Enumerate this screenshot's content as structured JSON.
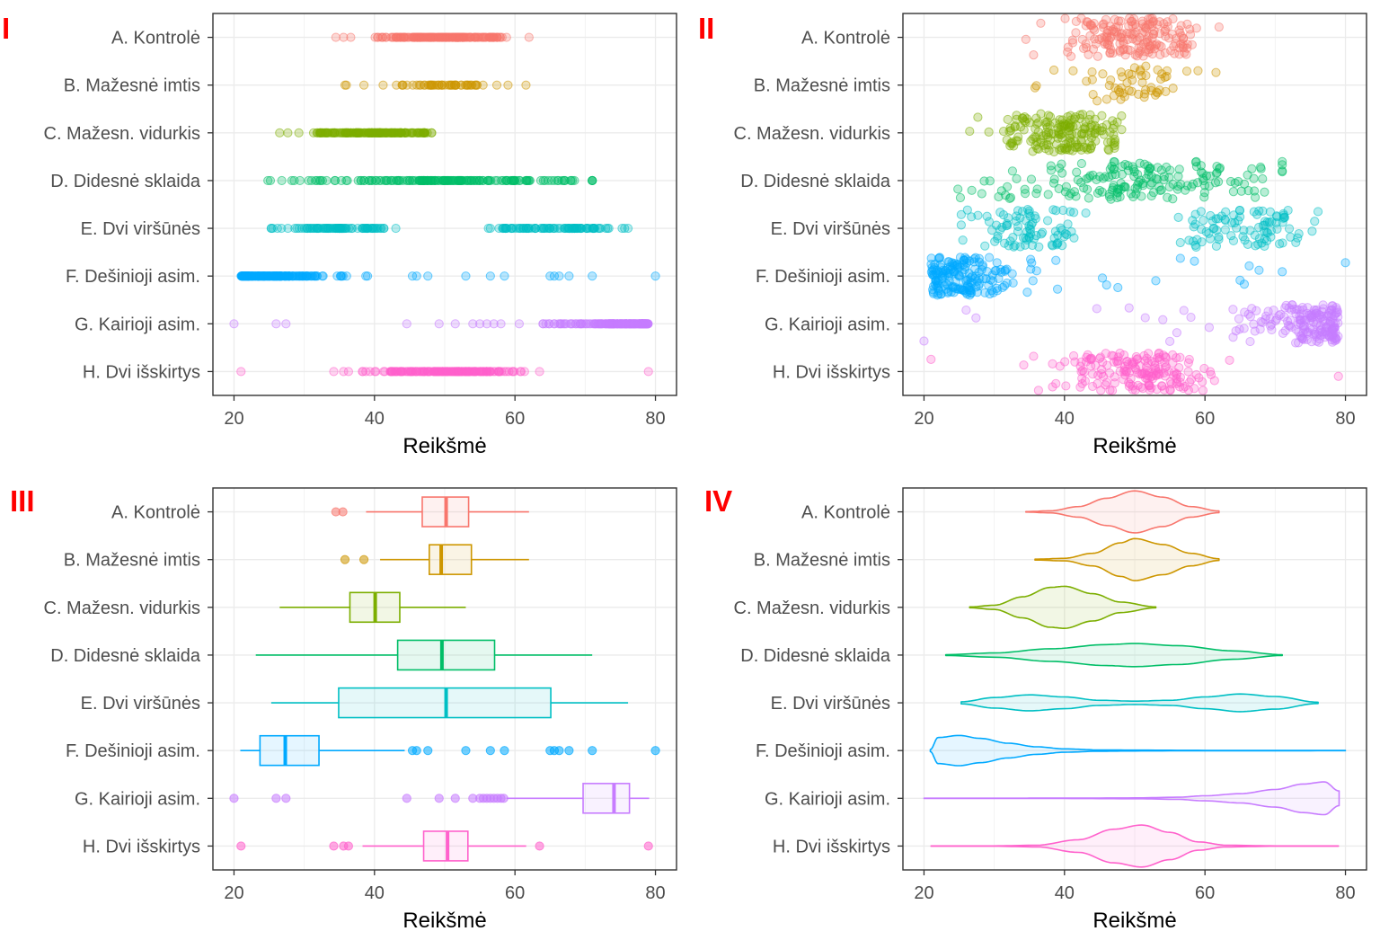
{
  "chart_data": {
    "type": "multi-panel distribution plot",
    "x_axis": {
      "label": "Reikšmė",
      "range": [
        17,
        83
      ],
      "ticks": [
        20,
        40,
        60,
        80
      ]
    },
    "grid": true,
    "categories": [
      "A. Kontrolė",
      "B. Mažesnė imtis",
      "C. Mažesn. vidurkis",
      "D. Didesnė sklaida",
      "E. Dvi viršūnės",
      "F. Dešinioji asim.",
      "G. Kairioji asim.",
      "H. Dvi išskirtys"
    ],
    "colors": [
      "#F8766D",
      "#CD9600",
      "#7CAE00",
      "#00BE67",
      "#00BFC4",
      "#00A9FF",
      "#C77CFF",
      "#FF61CC"
    ],
    "panels": [
      {
        "label": "I",
        "type": "strip"
      },
      {
        "label": "II",
        "type": "jitter"
      },
      {
        "label": "III",
        "type": "boxplot"
      },
      {
        "label": "IV",
        "type": "violin"
      }
    ],
    "boxplot_stats": [
      {
        "category": "A. Kontrolė",
        "whisker_low": 38.8,
        "q1": 46.8,
        "median": 50.2,
        "q3": 53.4,
        "whisker_high": 62,
        "outliers": [
          34.5,
          35.5
        ]
      },
      {
        "category": "B. Mažesnė imtis",
        "whisker_low": 40.8,
        "q1": 47.8,
        "median": 49.5,
        "q3": 53.8,
        "whisker_high": 62,
        "outliers": [
          35.8,
          38.5
        ]
      },
      {
        "category": "C. Mažesn. vidurkis",
        "whisker_low": 26.5,
        "q1": 36.5,
        "median": 40.1,
        "q3": 43.6,
        "whisker_high": 53,
        "outliers": []
      },
      {
        "category": "D. Didesnė sklaida",
        "whisker_low": 23.1,
        "q1": 43.3,
        "median": 49.6,
        "q3": 57.1,
        "whisker_high": 71,
        "outliers": []
      },
      {
        "category": "E. Dvi viršūnės",
        "whisker_low": 25.3,
        "q1": 34.9,
        "median": 50.2,
        "q3": 65.1,
        "whisker_high": 76.1,
        "outliers": []
      },
      {
        "category": "F. Dešinioji asim.",
        "whisker_low": 20.9,
        "q1": 23.7,
        "median": 27.3,
        "q3": 32.1,
        "whisker_high": 44.3,
        "outliers": [
          45.4,
          46,
          47.6,
          53,
          56.5,
          58.5,
          65,
          65.6,
          66.3,
          67.7,
          71,
          80
        ]
      },
      {
        "category": "G. Kairioji asim.",
        "whisker_low": 58.8,
        "q1": 69.7,
        "median": 74.1,
        "q3": 76.3,
        "whisker_high": 79.1,
        "outliers": [
          20,
          26,
          27.4,
          44.6,
          49.2,
          51.5,
          54,
          55,
          55.5,
          56,
          56.5,
          57,
          57.5,
          58,
          58.4
        ]
      },
      {
        "category": "H. Dvi išskirtys",
        "whisker_low": 38.3,
        "q1": 47,
        "median": 50.4,
        "q3": 53.3,
        "whisker_high": 61.6,
        "outliers": [
          21,
          34.2,
          35.6,
          36.3,
          63.5,
          79
        ]
      }
    ],
    "violin_shapes": [
      {
        "category": "A. Kontrolė",
        "range": [
          34.5,
          62
        ],
        "shape": [
          [
            34.5,
            0.01
          ],
          [
            38,
            0.05
          ],
          [
            42,
            0.25
          ],
          [
            46,
            0.65
          ],
          [
            50,
            1.0
          ],
          [
            54,
            0.7
          ],
          [
            58,
            0.25
          ],
          [
            62,
            0.04
          ]
        ]
      },
      {
        "category": "B. Mažesnė imtis",
        "range": [
          35.8,
          62
        ],
        "shape": [
          [
            35.8,
            0.02
          ],
          [
            40,
            0.06
          ],
          [
            44,
            0.3
          ],
          [
            48,
            0.8
          ],
          [
            50,
            1.0
          ],
          [
            54,
            0.72
          ],
          [
            58,
            0.3
          ],
          [
            62,
            0.04
          ]
        ]
      },
      {
        "category": "C. Mažesn. vidurkis",
        "range": [
          26.5,
          53
        ],
        "shape": [
          [
            26.5,
            0.02
          ],
          [
            30,
            0.1
          ],
          [
            34,
            0.5
          ],
          [
            38,
            0.95
          ],
          [
            40,
            1.0
          ],
          [
            44,
            0.65
          ],
          [
            48,
            0.25
          ],
          [
            53,
            0.02
          ]
        ]
      },
      {
        "category": "D. Didesnė sklaida",
        "range": [
          23.1,
          71
        ],
        "shape": [
          [
            23.1,
            0.02
          ],
          [
            30,
            0.1
          ],
          [
            38,
            0.3
          ],
          [
            46,
            0.5
          ],
          [
            50,
            0.55
          ],
          [
            56,
            0.45
          ],
          [
            64,
            0.2
          ],
          [
            71,
            0.02
          ]
        ]
      },
      {
        "category": "E. Dvi viršūnės",
        "range": [
          25.3,
          76.1
        ],
        "shape": [
          [
            25.3,
            0.05
          ],
          [
            30,
            0.25
          ],
          [
            35,
            0.38
          ],
          [
            40,
            0.28
          ],
          [
            45,
            0.12
          ],
          [
            50,
            0.08
          ],
          [
            55,
            0.12
          ],
          [
            60,
            0.28
          ],
          [
            65,
            0.42
          ],
          [
            70,
            0.3
          ],
          [
            76.1,
            0.03
          ]
        ]
      },
      {
        "category": "F. Dešinioji asim.",
        "range": [
          20.9,
          80
        ],
        "shape": [
          [
            20.9,
            0.05
          ],
          [
            22,
            0.62
          ],
          [
            25,
            0.72
          ],
          [
            28,
            0.58
          ],
          [
            32,
            0.35
          ],
          [
            36,
            0.18
          ],
          [
            40,
            0.08
          ],
          [
            45,
            0.03
          ],
          [
            50,
            0.02
          ],
          [
            60,
            0.01
          ],
          [
            70,
            0.01
          ],
          [
            80,
            0.005
          ]
        ]
      },
      {
        "category": "G. Kairioji asim.",
        "range": [
          20,
          79.1
        ],
        "shape": [
          [
            20,
            0.005
          ],
          [
            30,
            0.005
          ],
          [
            40,
            0.01
          ],
          [
            50,
            0.02
          ],
          [
            56,
            0.05
          ],
          [
            60,
            0.12
          ],
          [
            65,
            0.22
          ],
          [
            70,
            0.42
          ],
          [
            74,
            0.68
          ],
          [
            77,
            0.78
          ],
          [
            79.1,
            0.35
          ]
        ]
      },
      {
        "category": "H. Dvi išskirtys",
        "range": [
          21,
          79
        ],
        "shape": [
          [
            21,
            0.005
          ],
          [
            30,
            0.008
          ],
          [
            36,
            0.04
          ],
          [
            42,
            0.3
          ],
          [
            47,
            0.8
          ],
          [
            51,
            1.0
          ],
          [
            55,
            0.65
          ],
          [
            59,
            0.2
          ],
          [
            63,
            0.04
          ],
          [
            70,
            0.008
          ],
          [
            79,
            0.005
          ]
        ]
      }
    ]
  }
}
